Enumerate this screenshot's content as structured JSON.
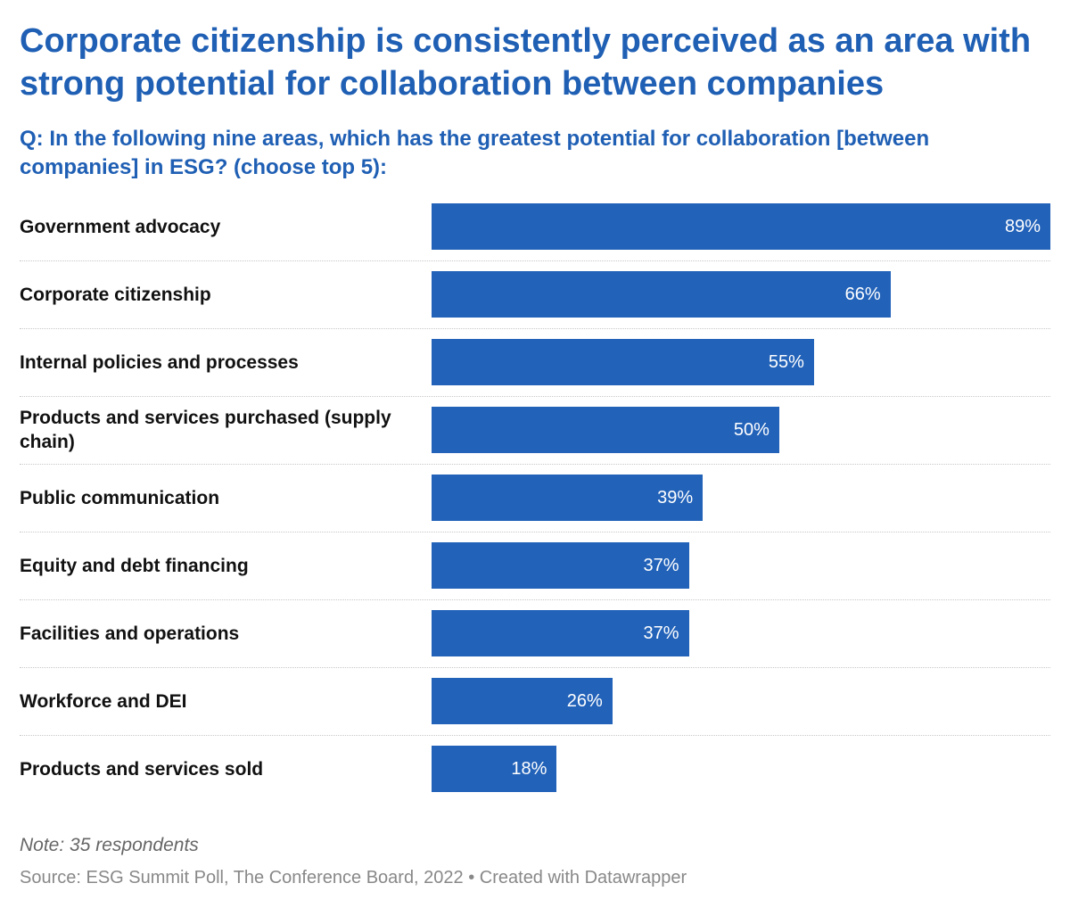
{
  "header": {
    "title": "Corporate citizenship is consistently perceived as an area with strong potential for collaboration between companies",
    "subtitle": "Q: In the following nine areas, which has the greatest potential for collaboration [between companies] in ESG? (choose top 5):"
  },
  "chart_data": {
    "type": "bar",
    "orientation": "horizontal",
    "categories": [
      "Government advocacy",
      "Corporate citizenship",
      "Internal policies and processes",
      "Products and services purchased (supply chain)",
      "Public communication",
      "Equity and debt financing",
      "Facilities and operations",
      "Workforce and DEI",
      "Products and services sold"
    ],
    "values": [
      89,
      66,
      55,
      50,
      39,
      37,
      37,
      26,
      18
    ],
    "value_labels": [
      "89%",
      "66%",
      "55%",
      "50%",
      "39%",
      "37%",
      "37%",
      "26%",
      "18%"
    ],
    "unit": "%",
    "xlim": [
      0,
      89
    ],
    "bar_color": "#2262b9",
    "grid": false,
    "legend": "none"
  },
  "footer": {
    "note": "Note: 35 respondents",
    "source": "Source: ESG Summit Poll, The Conference Board, 2022 • Created with Datawrapper"
  }
}
